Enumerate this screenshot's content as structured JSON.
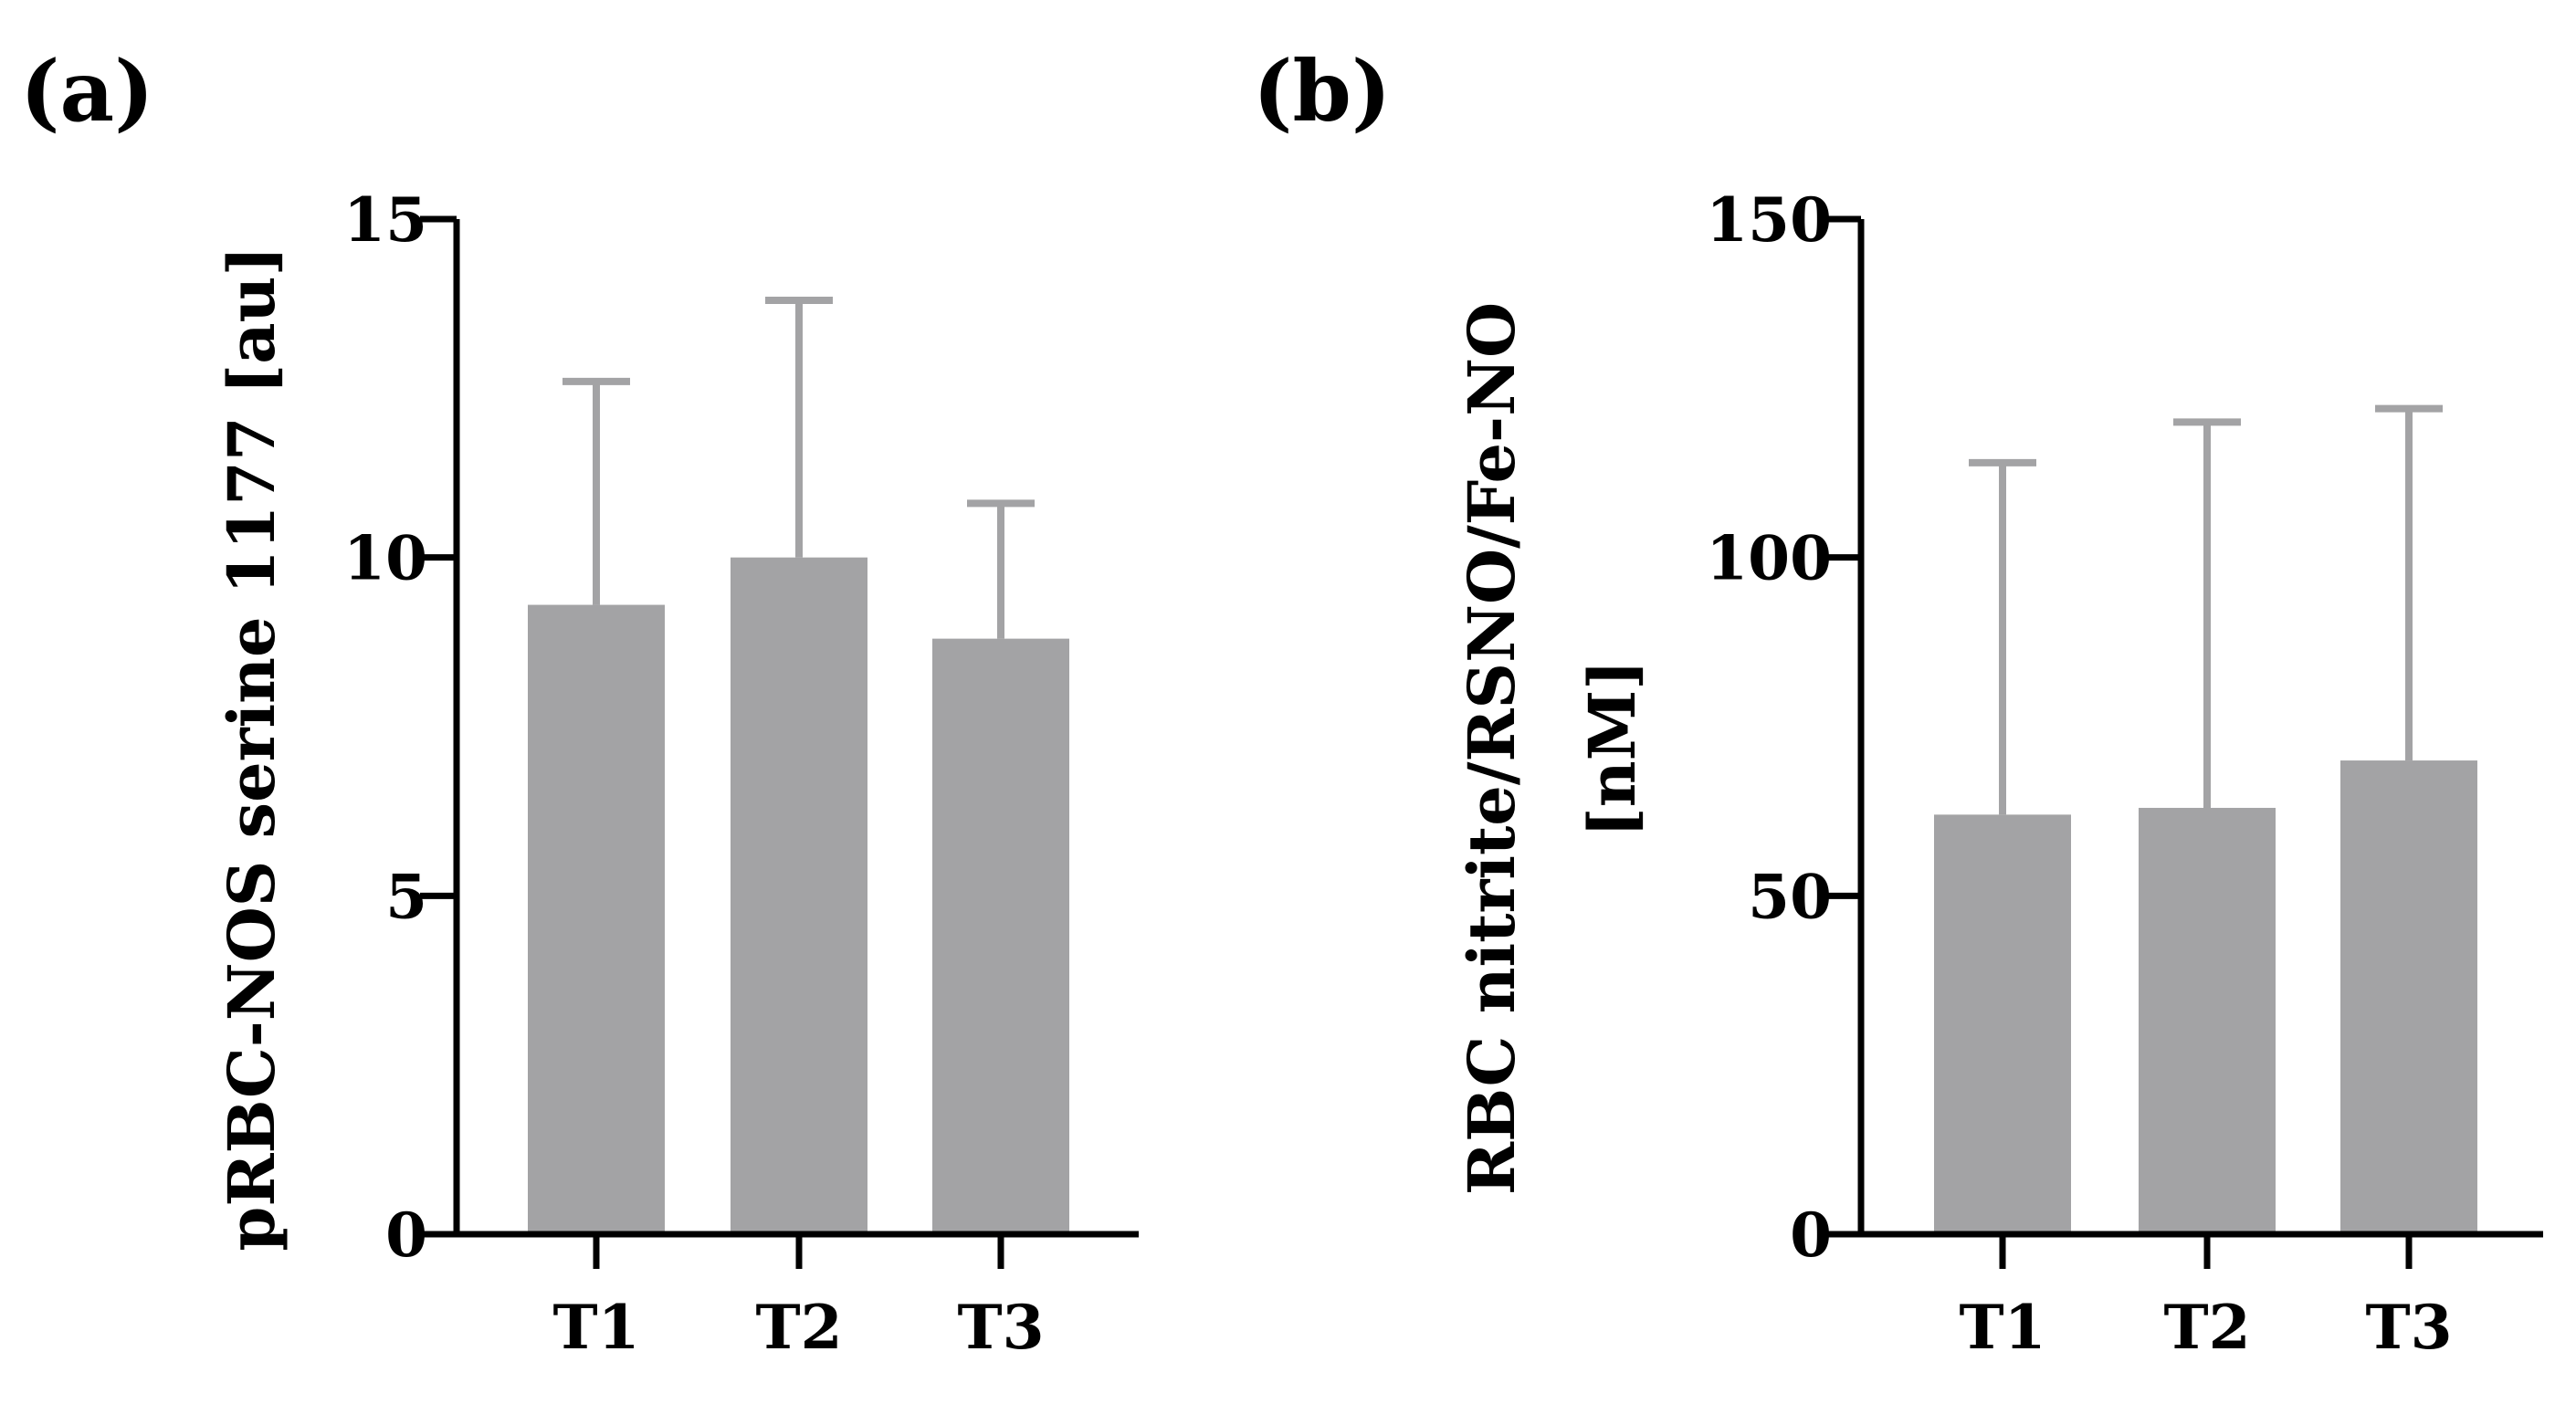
{
  "figure": {
    "bar_color": "#a3a3a5",
    "error_bar_color": "#a3a3a5",
    "axis_color": "#000000"
  },
  "chart_data": [
    {
      "panel_label": "(a)",
      "type": "bar",
      "categories": [
        "T1",
        "T2",
        "T3"
      ],
      "values": [
        9.3,
        10.0,
        8.8
      ],
      "error_upper": [
        12.6,
        13.8,
        10.8
      ],
      "ylabel": "pRBC-NOS serine 1177 [au]",
      "ylabel_lines": [
        "pRBC-NOS serine 1177 [au]"
      ],
      "ylim": [
        0,
        15
      ],
      "yticks": [
        0,
        5,
        10,
        15
      ],
      "ytick_labels": [
        "0",
        "5",
        "10",
        "15"
      ],
      "xlabel": "",
      "title": ""
    },
    {
      "panel_label": "(b)",
      "type": "bar",
      "categories": [
        "T1",
        "T2",
        "T3"
      ],
      "values": [
        62,
        63,
        70
      ],
      "error_upper": [
        114,
        120,
        122
      ],
      "ylabel": "RBC nitrite/RSNO/Fe-NO [nM]",
      "ylabel_lines": [
        "RBC nitrite/RSNO/Fe-NO",
        "[nM]"
      ],
      "ylim": [
        0,
        150
      ],
      "yticks": [
        0,
        50,
        100,
        150
      ],
      "ytick_labels": [
        "0",
        "50",
        "100",
        "150"
      ],
      "xlabel": "",
      "title": ""
    }
  ]
}
